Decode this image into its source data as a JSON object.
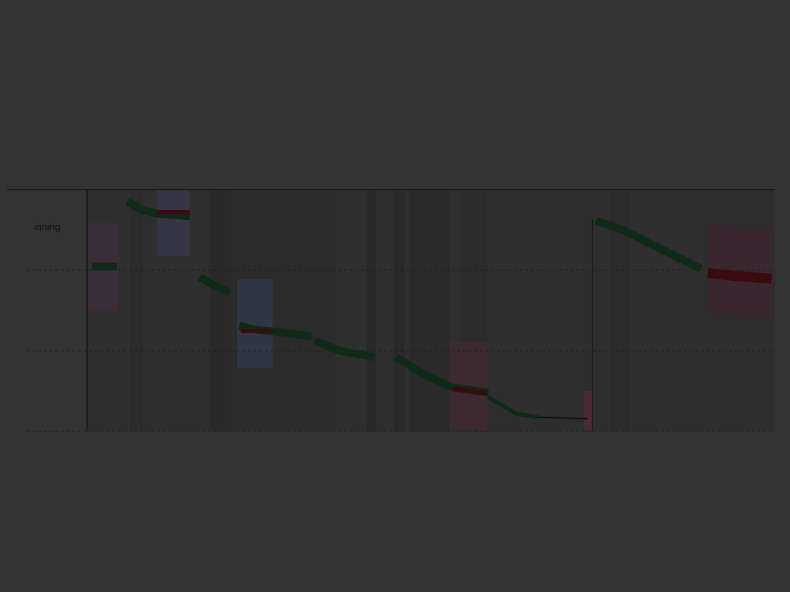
{
  "labels": {
    "left": "inning"
  }
}
